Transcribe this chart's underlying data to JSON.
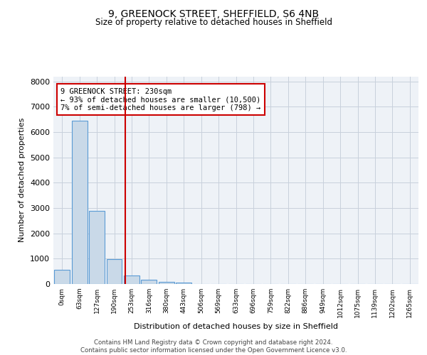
{
  "title_line1": "9, GREENOCK STREET, SHEFFIELD, S6 4NB",
  "title_line2": "Size of property relative to detached houses in Sheffield",
  "xlabel": "Distribution of detached houses by size in Sheffield",
  "ylabel": "Number of detached properties",
  "bar_labels": [
    "0sqm",
    "63sqm",
    "127sqm",
    "190sqm",
    "253sqm",
    "316sqm",
    "380sqm",
    "443sqm",
    "506sqm",
    "569sqm",
    "633sqm",
    "696sqm",
    "759sqm",
    "822sqm",
    "886sqm",
    "949sqm",
    "1012sqm",
    "1075sqm",
    "1139sqm",
    "1202sqm",
    "1265sqm"
  ],
  "bar_values": [
    570,
    6450,
    2900,
    990,
    350,
    160,
    90,
    70,
    0,
    0,
    0,
    0,
    0,
    0,
    0,
    0,
    0,
    0,
    0,
    0,
    0
  ],
  "bar_color": "#c9d9e8",
  "bar_edge_color": "#5b9bd5",
  "property_line_x": 3.62,
  "annotation_text": "9 GREENOCK STREET: 230sqm\n← 93% of detached houses are smaller (10,500)\n7% of semi-detached houses are larger (798) →",
  "annotation_box_color": "#cc0000",
  "ylim": [
    0,
    8200
  ],
  "yticks": [
    0,
    1000,
    2000,
    3000,
    4000,
    5000,
    6000,
    7000,
    8000
  ],
  "footer_line1": "Contains HM Land Registry data © Crown copyright and database right 2024.",
  "footer_line2": "Contains public sector information licensed under the Open Government Licence v3.0.",
  "plot_bg_color": "#eef2f7",
  "grid_color": "#c8d0dc"
}
